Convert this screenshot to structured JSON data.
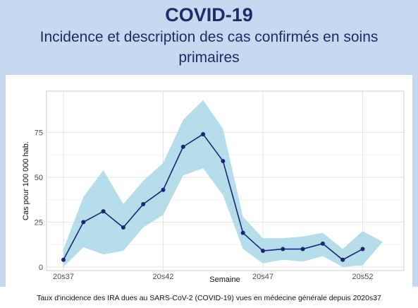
{
  "header": {
    "title": "COVID-19",
    "subtitle": "Incidence et description des cas confirmés en soins primaires"
  },
  "caption": "Taux d'incidence des IRA dues au SARS-CoV-2 (COVID-19) vues en médecine générale depuis 2020s37",
  "colors": {
    "header_bg": "#c5d9f1",
    "title_text": "#1f2a6b",
    "line": "#1a237e",
    "ribbon": "#a8d8e6"
  },
  "chart_data": {
    "type": "line",
    "title": "",
    "xlabel": "Semaine",
    "ylabel": "Cas pour 100 000 hab.",
    "x": [
      "20s37",
      "20s38",
      "20s39",
      "20s40",
      "20s41",
      "20s42",
      "20s43",
      "20s44",
      "20s45",
      "20s46",
      "20s47",
      "20s48",
      "20s49",
      "20s50",
      "20s51",
      "20s52",
      "20s53"
    ],
    "x_tick_labels": [
      "20s37",
      "20s42",
      "20s47",
      "20s52"
    ],
    "y_ticks": [
      0,
      25,
      50,
      75
    ],
    "ylim": [
      -2,
      98
    ],
    "grid": true,
    "series": [
      {
        "values": [
          4,
          25,
          31,
          22,
          35,
          43,
          67,
          74,
          59,
          19,
          9,
          10,
          10,
          13,
          4,
          10,
          null
        ],
        "lower": [
          0,
          11,
          7,
          9,
          22,
          29,
          51,
          55,
          40,
          10,
          2,
          4,
          3,
          6,
          0,
          1,
          null
        ],
        "upper": [
          10,
          39,
          54,
          35,
          48,
          58,
          82,
          93,
          77,
          28,
          16,
          16,
          17,
          19,
          10,
          20,
          14
        ]
      }
    ]
  }
}
